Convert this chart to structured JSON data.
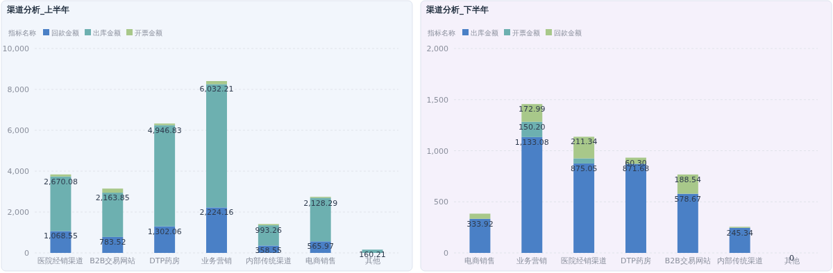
{
  "chart_data": [
    {
      "type": "bar",
      "title": "渠道分析_上半年",
      "legend_title": "指标名称",
      "stacked": true,
      "grid": "y",
      "legend": "top left",
      "categories": [
        "医院经销渠道",
        "B2B交易网站",
        "DTP药房",
        "业务营销",
        "内部传统渠道",
        "电商销售",
        "其他"
      ],
      "ylim": [
        0,
        10000
      ],
      "yticks": [
        {
          "value": 0,
          "label": "0"
        },
        {
          "value": 2000,
          "label": "2,000"
        },
        {
          "value": 4000,
          "label": "4,000"
        },
        {
          "value": 6000,
          "label": "6,000"
        },
        {
          "value": 8000,
          "label": "8,000"
        },
        {
          "value": 10000,
          "label": "10,000"
        }
      ],
      "series": [
        {
          "name": "回款金额",
          "color": "#4a80c6",
          "values": [
            1068.55,
            783.52,
            1302.06,
            2224.16,
            358.55,
            565.97,
            0
          ],
          "value_labels": [
            "1,068.55",
            "783.52",
            "1,302.06",
            "2,224.16",
            "358.55",
            "565.97",
            null
          ]
        },
        {
          "name": "出库金额",
          "color": "#6db0b0",
          "values": [
            2670.08,
            2163.85,
            4946.83,
            6032.21,
            993.26,
            2128.29,
            160.21
          ],
          "value_labels": [
            "2,670.08",
            "2,163.85",
            "4,946.83",
            "6,032.21",
            "993.26",
            "2,128.29",
            "160.21"
          ]
        },
        {
          "name": "开票金额",
          "color": "#a8c88a",
          "values": [
            100,
            200,
            80,
            150,
            60,
            50,
            null
          ],
          "value_labels": [
            null,
            null,
            null,
            null,
            null,
            null,
            null
          ]
        }
      ]
    },
    {
      "type": "bar",
      "title": "渠道分析_下半年",
      "legend_title": "指标名称",
      "stacked": true,
      "grid": "y",
      "legend": "top left",
      "categories": [
        "电商销售",
        "业务营销",
        "医院经销渠道",
        "DTP药房",
        "B2B交易网站",
        "内部传统渠道",
        "其他"
      ],
      "ylim": [
        0,
        2000
      ],
      "yticks": [
        {
          "value": 0,
          "label": "0"
        },
        {
          "value": 500,
          "label": "500"
        },
        {
          "value": 1000,
          "label": "1,000"
        },
        {
          "value": 1500,
          "label": "1,500"
        },
        {
          "value": 2000,
          "label": "2,000"
        }
      ],
      "series": [
        {
          "name": "出库金额",
          "color": "#4a80c6",
          "values": [
            333.92,
            1133.08,
            875.05,
            871.68,
            578.67,
            245.34,
            0
          ],
          "value_labels": [
            "333.92",
            "1,133.08",
            "875.05",
            "871.68",
            "578.67",
            "245.34",
            null
          ]
        },
        {
          "name": "开票金额",
          "color": "#6db0b0",
          "values": [
            0,
            150.2,
            50,
            0,
            0,
            0,
            0
          ],
          "value_labels": [
            null,
            "150.20",
            null,
            null,
            null,
            null,
            null
          ]
        },
        {
          "name": "回款金额",
          "color": "#a8c88a",
          "values": [
            50,
            172.99,
            211.34,
            60.3,
            188.54,
            10,
            0
          ],
          "value_labels": [
            null,
            "172.99",
            "211.34",
            "60.30",
            "188.54",
            null,
            "0"
          ]
        }
      ]
    }
  ]
}
